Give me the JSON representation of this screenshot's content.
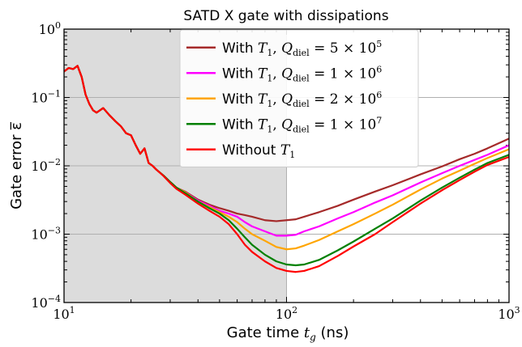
{
  "chart_data": {
    "type": "line",
    "title": "SATD X gate with dissipations",
    "xlabel_text": "Gate time ",
    "xlabel_math": "t",
    "xlabel_sub": "g",
    "xlabel_unit": " (ns)",
    "ylabel": "Gate error ε̅",
    "xscale": "log",
    "yscale": "log",
    "xlim": [
      10,
      1000
    ],
    "ylim": [
      0.0001,
      1
    ],
    "xticks": [
      {
        "value": 10,
        "base": "10",
        "exp": "1"
      },
      {
        "value": 100,
        "base": "10",
        "exp": "2"
      },
      {
        "value": 1000,
        "base": "10",
        "exp": "3"
      }
    ],
    "yticks": [
      {
        "value": 1,
        "base": "10",
        "exp": "0"
      },
      {
        "value": 0.1,
        "base": "10",
        "exp": "−1"
      },
      {
        "value": 0.01,
        "base": "10",
        "exp": "−2"
      },
      {
        "value": 0.001,
        "base": "10",
        "exp": "−3"
      },
      {
        "value": 0.0001,
        "base": "10",
        "exp": "−4"
      }
    ],
    "grid": true,
    "shaded_region": {
      "x_from": 10,
      "x_to": 100,
      "color": "#dcdcdc"
    },
    "legend": {
      "placement": "top-center"
    },
    "shared_prefix": [
      [
        10,
        0.24
      ],
      [
        10.5,
        0.27
      ],
      [
        11,
        0.26
      ],
      [
        11.5,
        0.29
      ],
      [
        12,
        0.2
      ],
      [
        12.5,
        0.11
      ],
      [
        13,
        0.08
      ],
      [
        13.5,
        0.065
      ],
      [
        14,
        0.06
      ],
      [
        15,
        0.07
      ],
      [
        16,
        0.055
      ],
      [
        17,
        0.045
      ],
      [
        18,
        0.038
      ],
      [
        19,
        0.03
      ],
      [
        20,
        0.028
      ],
      [
        21,
        0.02
      ],
      [
        22,
        0.015
      ],
      [
        23,
        0.018
      ],
      [
        24,
        0.011
      ],
      [
        25,
        0.01
      ]
    ],
    "series": [
      {
        "label_prefix": "With ",
        "label_math": "T",
        "label_sub": "1",
        "label_q": "5 × 10",
        "label_exp": "5",
        "color": "#a52a2a",
        "points": [
          [
            26,
            0.0088
          ],
          [
            28,
            0.0072
          ],
          [
            30,
            0.0058
          ],
          [
            32,
            0.0048
          ],
          [
            35,
            0.0042
          ],
          [
            40,
            0.0032
          ],
          [
            45,
            0.0027
          ],
          [
            50,
            0.0024
          ],
          [
            55,
            0.0022
          ],
          [
            60,
            0.002
          ],
          [
            65,
            0.0019
          ],
          [
            70,
            0.0018
          ],
          [
            80,
            0.0016
          ],
          [
            90,
            0.00155
          ],
          [
            100,
            0.0016
          ],
          [
            110,
            0.00165
          ],
          [
            120,
            0.0018
          ],
          [
            140,
            0.0021
          ],
          [
            170,
            0.0026
          ],
          [
            200,
            0.0032
          ],
          [
            250,
            0.0042
          ],
          [
            300,
            0.0052
          ],
          [
            400,
            0.0075
          ],
          [
            500,
            0.0098
          ],
          [
            600,
            0.0125
          ],
          [
            700,
            0.015
          ],
          [
            800,
            0.018
          ],
          [
            1000,
            0.025
          ]
        ]
      },
      {
        "label_prefix": "With ",
        "label_math": "T",
        "label_sub": "1",
        "label_q": "1 × 10",
        "label_exp": "6",
        "color": "#ff00ff",
        "points": [
          [
            26,
            0.0088
          ],
          [
            28,
            0.0072
          ],
          [
            30,
            0.0058
          ],
          [
            32,
            0.0048
          ],
          [
            35,
            0.0041
          ],
          [
            40,
            0.0031
          ],
          [
            45,
            0.0026
          ],
          [
            50,
            0.0022
          ],
          [
            55,
            0.002
          ],
          [
            60,
            0.0018
          ],
          [
            65,
            0.0015
          ],
          [
            70,
            0.0013
          ],
          [
            80,
            0.0011
          ],
          [
            90,
            0.00095
          ],
          [
            100,
            0.00095
          ],
          [
            110,
            0.00098
          ],
          [
            120,
            0.0011
          ],
          [
            140,
            0.0013
          ],
          [
            170,
            0.0017
          ],
          [
            200,
            0.0021
          ],
          [
            250,
            0.0029
          ],
          [
            300,
            0.0037
          ],
          [
            400,
            0.0057
          ],
          [
            500,
            0.0078
          ],
          [
            600,
            0.01
          ],
          [
            700,
            0.0122
          ],
          [
            800,
            0.0145
          ],
          [
            1000,
            0.02
          ]
        ]
      },
      {
        "label_prefix": "With ",
        "label_math": "T",
        "label_sub": "1",
        "label_q": "2 × 10",
        "label_exp": "6",
        "color": "#ffa500",
        "points": [
          [
            26,
            0.0088
          ],
          [
            28,
            0.0072
          ],
          [
            30,
            0.0058
          ],
          [
            32,
            0.0048
          ],
          [
            35,
            0.0041
          ],
          [
            40,
            0.003
          ],
          [
            45,
            0.0025
          ],
          [
            50,
            0.0021
          ],
          [
            55,
            0.0018
          ],
          [
            60,
            0.0015
          ],
          [
            65,
            0.0012
          ],
          [
            70,
            0.001
          ],
          [
            80,
            0.0008
          ],
          [
            90,
            0.00065
          ],
          [
            100,
            0.0006
          ],
          [
            110,
            0.00062
          ],
          [
            120,
            0.00068
          ],
          [
            140,
            0.00082
          ],
          [
            170,
            0.0011
          ],
          [
            200,
            0.0014
          ],
          [
            250,
            0.002
          ],
          [
            300,
            0.0027
          ],
          [
            400,
            0.0045
          ],
          [
            500,
            0.0065
          ],
          [
            600,
            0.0085
          ],
          [
            700,
            0.0107
          ],
          [
            800,
            0.013
          ],
          [
            1000,
            0.0175
          ]
        ]
      },
      {
        "label_prefix": "With ",
        "label_math": "T",
        "label_sub": "1",
        "label_q": "1 × 10",
        "label_exp": "7",
        "color": "#008000",
        "points": [
          [
            26,
            0.0088
          ],
          [
            28,
            0.0072
          ],
          [
            30,
            0.0058
          ],
          [
            32,
            0.0048
          ],
          [
            35,
            0.004
          ],
          [
            40,
            0.003
          ],
          [
            45,
            0.0024
          ],
          [
            50,
            0.002
          ],
          [
            55,
            0.0016
          ],
          [
            60,
            0.0012
          ],
          [
            65,
            0.0009
          ],
          [
            70,
            0.0007
          ],
          [
            80,
            0.0005
          ],
          [
            90,
            0.0004
          ],
          [
            100,
            0.00036
          ],
          [
            110,
            0.00035
          ],
          [
            120,
            0.00036
          ],
          [
            140,
            0.00042
          ],
          [
            170,
            0.00058
          ],
          [
            200,
            0.00078
          ],
          [
            250,
            0.0012
          ],
          [
            300,
            0.0017
          ],
          [
            400,
            0.0031
          ],
          [
            500,
            0.0048
          ],
          [
            600,
            0.0067
          ],
          [
            700,
            0.0088
          ],
          [
            800,
            0.011
          ],
          [
            1000,
            0.0145
          ]
        ]
      },
      {
        "label_prefix": "Without ",
        "label_math": "T",
        "label_sub": "1",
        "label_q": "",
        "label_exp": "",
        "color": "#ff0000",
        "points": [
          [
            26,
            0.0088
          ],
          [
            28,
            0.0071
          ],
          [
            30,
            0.0056
          ],
          [
            32,
            0.0046
          ],
          [
            35,
            0.0038
          ],
          [
            40,
            0.0028
          ],
          [
            45,
            0.0022
          ],
          [
            50,
            0.0018
          ],
          [
            55,
            0.0014
          ],
          [
            60,
            0.001
          ],
          [
            65,
            0.0007
          ],
          [
            70,
            0.00055
          ],
          [
            80,
            0.0004
          ],
          [
            90,
            0.00032
          ],
          [
            100,
            0.00029
          ],
          [
            110,
            0.00028
          ],
          [
            120,
            0.00029
          ],
          [
            140,
            0.00034
          ],
          [
            170,
            0.00048
          ],
          [
            200,
            0.00066
          ],
          [
            250,
            0.001
          ],
          [
            300,
            0.0015
          ],
          [
            400,
            0.0028
          ],
          [
            500,
            0.0044
          ],
          [
            600,
            0.0062
          ],
          [
            700,
            0.0082
          ],
          [
            800,
            0.0103
          ],
          [
            1000,
            0.0135
          ]
        ]
      }
    ]
  }
}
